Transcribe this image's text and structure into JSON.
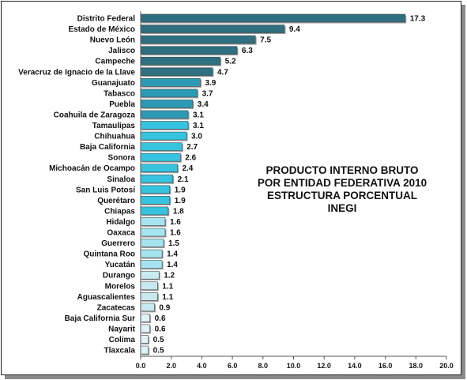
{
  "chart_data": {
    "type": "bar",
    "orientation": "horizontal",
    "title_lines": [
      "PRODUCTO INTERNO BRUTO",
      "POR ENTIDAD FEDERATIVA 2010",
      "ESTRUCTURA PORCENTUAL",
      "INEGI"
    ],
    "categories": [
      "Distrito Federal",
      "Estado de México",
      "Nuevo León",
      "Jalisco",
      "Campeche",
      "Veracruz de Ignacio de la Llave",
      "Guanajuato",
      "Tabasco",
      "Puebla",
      "Coahuila de Zaragoza",
      "Tamaulipas",
      "Chihuahua",
      "Baja California",
      "Sonora",
      "Michoacán de Ocampo",
      "Sinaloa",
      "San Luis Potosí",
      "Querétaro",
      "Chiapas",
      "Hidalgo",
      "Oaxaca",
      "Guerrero",
      "Quintana Roo",
      "Yucatán",
      "Durango",
      "Morelos",
      "Aguascalientes",
      "Zacatecas",
      "Baja California Sur",
      "Nayarit",
      "Colima",
      "Tlaxcala"
    ],
    "values": [
      17.3,
      9.4,
      7.5,
      6.3,
      5.2,
      4.7,
      3.9,
      3.7,
      3.4,
      3.1,
      3.1,
      3.0,
      2.7,
      2.6,
      2.4,
      2.1,
      1.9,
      1.9,
      1.8,
      1.6,
      1.6,
      1.5,
      1.4,
      1.4,
      1.2,
      1.1,
      1.1,
      0.9,
      0.6,
      0.6,
      0.5,
      0.5
    ],
    "value_labels": [
      "17.3",
      "9.4",
      "7.5",
      "6.3",
      "5.2",
      "4.7",
      "3.9",
      "3.7",
      "3.4",
      "3.1",
      "3.1",
      "3.0",
      "2.7",
      "2.6",
      "2.4",
      "2.1",
      "1.9",
      "1.9",
      "1.8",
      "1.6",
      "1.6",
      "1.5",
      "1.4",
      "1.4",
      "1.2",
      "1.1",
      "1.1",
      "0.9",
      "0.6",
      "0.6",
      "0.5",
      "0.5"
    ],
    "x_ticks": [
      "0.0",
      "2.0",
      "4.0",
      "6.0",
      "8.0",
      "10.0",
      "12.0",
      "14.0",
      "16.0",
      "18.0",
      "20.0"
    ],
    "xlim": [
      0,
      20
    ],
    "grid": false,
    "legend": false,
    "bar_colors": [
      "#2e6f80",
      "#2e6f80",
      "#2e6f80",
      "#2e6f80",
      "#2e6f80",
      "#2e6f80",
      "#2c9ab4",
      "#2c9ab4",
      "#2c9ab4",
      "#2c9ab4",
      "#36c3df",
      "#36c3df",
      "#36c3df",
      "#36c3df",
      "#36c3df",
      "#36c3df",
      "#36c3df",
      "#36c3df",
      "#36c3df",
      "#a6e4ef",
      "#a6e4ef",
      "#a6e4ef",
      "#a6e4ef",
      "#a6e4ef",
      "#c7e9ef",
      "#c7e9ef",
      "#c7e9ef",
      "#c7e9ef",
      "#dff2f5",
      "#dff2f5",
      "#dff2f5",
      "#dff2f5"
    ]
  }
}
